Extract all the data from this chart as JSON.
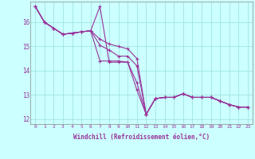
{
  "xlabel": "Windchill (Refroidissement éolien,°C)",
  "background_color": "#ccffff",
  "grid_color": "#99dddd",
  "line_color": "#993399",
  "xlim": [
    -0.5,
    23.5
  ],
  "ylim": [
    11.8,
    16.85
  ],
  "yticks": [
    12,
    13,
    14,
    15,
    16
  ],
  "xticks": [
    0,
    1,
    2,
    3,
    4,
    5,
    6,
    7,
    8,
    9,
    10,
    11,
    12,
    13,
    14,
    15,
    16,
    17,
    18,
    19,
    20,
    21,
    22,
    23
  ],
  "series1_x": [
    0,
    1,
    2,
    3,
    4,
    5,
    6,
    7,
    8,
    9,
    10,
    11,
    12,
    13,
    14,
    15,
    16,
    17,
    18,
    19,
    20,
    21,
    22,
    23
  ],
  "series1_y": [
    16.65,
    16.0,
    15.75,
    15.5,
    15.55,
    15.6,
    15.65,
    16.65,
    14.35,
    14.35,
    14.35,
    13.2,
    12.2,
    12.85,
    12.9,
    12.9,
    13.05,
    12.9,
    12.9,
    12.9,
    12.75,
    12.6,
    12.5,
    12.5
  ],
  "series2_x": [
    0,
    1,
    2,
    3,
    4,
    5,
    6,
    7,
    8,
    9,
    10,
    11,
    12,
    13,
    14,
    15,
    16,
    17,
    18,
    19,
    20,
    21,
    22,
    23
  ],
  "series2_y": [
    16.65,
    16.0,
    15.75,
    15.5,
    15.55,
    15.6,
    15.65,
    14.4,
    14.4,
    14.4,
    14.35,
    13.5,
    12.2,
    12.85,
    12.9,
    12.9,
    13.05,
    12.9,
    12.9,
    12.9,
    12.75,
    12.6,
    12.5,
    12.5
  ],
  "series3_x": [
    0,
    1,
    2,
    3,
    4,
    5,
    6,
    7,
    8,
    9,
    10,
    11,
    12,
    13,
    14,
    15,
    16,
    17,
    18,
    19,
    20,
    21,
    22,
    23
  ],
  "series3_y": [
    16.65,
    16.0,
    15.75,
    15.5,
    15.55,
    15.6,
    15.65,
    15.05,
    14.85,
    14.6,
    14.6,
    14.2,
    12.2,
    12.85,
    12.9,
    12.9,
    13.05,
    12.9,
    12.9,
    12.9,
    12.75,
    12.6,
    12.5,
    12.5
  ],
  "series4_x": [
    0,
    1,
    2,
    3,
    4,
    5,
    6,
    7,
    8,
    9,
    10,
    11,
    12,
    13,
    14,
    15,
    16,
    17,
    18,
    19,
    20,
    21,
    22,
    23
  ],
  "series4_y": [
    16.65,
    16.0,
    15.75,
    15.5,
    15.55,
    15.6,
    15.65,
    15.3,
    15.1,
    15.0,
    14.9,
    14.5,
    12.2,
    12.85,
    12.9,
    12.9,
    13.05,
    12.9,
    12.9,
    12.9,
    12.75,
    12.6,
    12.5,
    12.5
  ]
}
